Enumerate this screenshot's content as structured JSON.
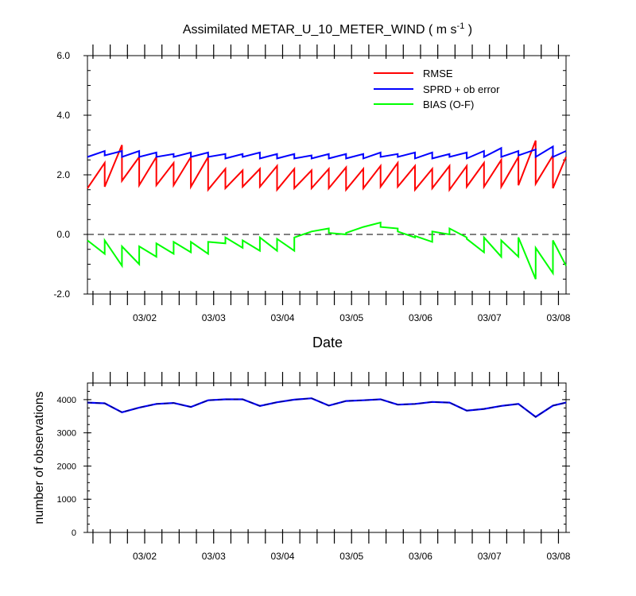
{
  "chart_data": [
    {
      "type": "line",
      "title": "Assimilated METAR_U_10_METER_WIND",
      "title_units": "( m s",
      "title_units_exp": "-1",
      "title_units_close": " )",
      "xlabel": "Date",
      "ylabel": "",
      "ylim": [
        -2.0,
        6.0
      ],
      "yticks": [
        "-2.0",
        "0.0",
        "2.0",
        "4.0",
        "6.0"
      ],
      "xlim": [
        1.17,
        8.11
      ],
      "xticks": [
        {
          "x": 2,
          "label": "03/02"
        },
        {
          "x": 3,
          "label": "03/03"
        },
        {
          "x": 4,
          "label": "03/04"
        },
        {
          "x": 5,
          "label": "03/05"
        },
        {
          "x": 6,
          "label": "03/06"
        },
        {
          "x": 7,
          "label": "03/07"
        },
        {
          "x": 8,
          "label": "03/08"
        }
      ],
      "zero_line": true,
      "legend_position": "top-right",
      "series": [
        {
          "name": "RMSE",
          "color": "#ff0000"
        },
        {
          "name": "SPRD + ob error",
          "color": "#0000ff"
        },
        {
          "name": "BIAS (O-F)",
          "color": "#00ff00"
        }
      ],
      "sawtooth": [
        {
          "x0": 1.17,
          "x1": 1.42,
          "rmse": [
            1.55,
            2.4
          ],
          "sprd": [
            2.6,
            2.8
          ],
          "bias": [
            -0.2,
            -0.65
          ]
        },
        {
          "x0": 1.42,
          "x1": 1.67,
          "rmse": [
            1.6,
            3.0
          ],
          "sprd": [
            2.65,
            2.8
          ],
          "bias": [
            -0.2,
            -1.05
          ]
        },
        {
          "x0": 1.67,
          "x1": 1.92,
          "rmse": [
            1.8,
            2.6
          ],
          "sprd": [
            2.6,
            2.8
          ],
          "bias": [
            -0.4,
            -1.0
          ]
        },
        {
          "x0": 1.92,
          "x1": 2.17,
          "rmse": [
            1.65,
            2.6
          ],
          "sprd": [
            2.6,
            2.75
          ],
          "bias": [
            -0.4,
            -0.75
          ]
        },
        {
          "x0": 2.17,
          "x1": 2.42,
          "rmse": [
            1.65,
            2.4
          ],
          "sprd": [
            2.6,
            2.7
          ],
          "bias": [
            -0.3,
            -0.65
          ]
        },
        {
          "x0": 2.42,
          "x1": 2.67,
          "rmse": [
            1.65,
            2.6
          ],
          "sprd": [
            2.6,
            2.75
          ],
          "bias": [
            -0.25,
            -0.6
          ]
        },
        {
          "x0": 2.67,
          "x1": 2.92,
          "rmse": [
            1.6,
            2.6
          ],
          "sprd": [
            2.6,
            2.75
          ],
          "bias": [
            -0.25,
            -0.65
          ]
        },
        {
          "x0": 2.92,
          "x1": 3.17,
          "rmse": [
            1.5,
            2.2
          ],
          "sprd": [
            2.6,
            2.7
          ],
          "bias": [
            -0.25,
            -0.3
          ]
        },
        {
          "x0": 3.17,
          "x1": 3.42,
          "rmse": [
            1.55,
            2.15
          ],
          "sprd": [
            2.55,
            2.7
          ],
          "bias": [
            -0.1,
            -0.45
          ]
        },
        {
          "x0": 3.42,
          "x1": 3.67,
          "rmse": [
            1.6,
            2.2
          ],
          "sprd": [
            2.6,
            2.75
          ],
          "bias": [
            -0.2,
            -0.55
          ]
        },
        {
          "x0": 3.67,
          "x1": 3.92,
          "rmse": [
            1.6,
            2.3
          ],
          "sprd": [
            2.55,
            2.7
          ],
          "bias": [
            -0.1,
            -0.55
          ]
        },
        {
          "x0": 3.92,
          "x1": 4.17,
          "rmse": [
            1.5,
            2.2
          ],
          "sprd": [
            2.55,
            2.7
          ],
          "bias": [
            -0.15,
            -0.55
          ]
        },
        {
          "x0": 4.17,
          "x1": 4.42,
          "rmse": [
            1.55,
            2.15
          ],
          "sprd": [
            2.55,
            2.65
          ],
          "bias": [
            -0.1,
            0.1
          ]
        },
        {
          "x0": 4.42,
          "x1": 4.67,
          "rmse": [
            1.55,
            2.2
          ],
          "sprd": [
            2.55,
            2.7
          ],
          "bias": [
            0.1,
            0.2
          ]
        },
        {
          "x0": 4.67,
          "x1": 4.92,
          "rmse": [
            1.55,
            2.25
          ],
          "sprd": [
            2.55,
            2.7
          ],
          "bias": [
            0.05,
            0.0
          ]
        },
        {
          "x0": 4.92,
          "x1": 5.17,
          "rmse": [
            1.5,
            2.2
          ],
          "sprd": [
            2.55,
            2.7
          ],
          "bias": [
            0.05,
            0.25
          ]
        },
        {
          "x0": 5.17,
          "x1": 5.42,
          "rmse": [
            1.55,
            2.3
          ],
          "sprd": [
            2.55,
            2.75
          ],
          "bias": [
            0.25,
            0.4
          ]
        },
        {
          "x0": 5.42,
          "x1": 5.67,
          "rmse": [
            1.6,
            2.4
          ],
          "sprd": [
            2.6,
            2.7
          ],
          "bias": [
            0.25,
            0.2
          ]
        },
        {
          "x0": 5.67,
          "x1": 5.92,
          "rmse": [
            1.6,
            2.3
          ],
          "sprd": [
            2.6,
            2.75
          ],
          "bias": [
            0.1,
            -0.1
          ]
        },
        {
          "x0": 5.92,
          "x1": 6.17,
          "rmse": [
            1.5,
            2.2
          ],
          "sprd": [
            2.55,
            2.75
          ],
          "bias": [
            -0.05,
            -0.25
          ]
        },
        {
          "x0": 6.17,
          "x1": 6.42,
          "rmse": [
            1.55,
            2.3
          ],
          "sprd": [
            2.55,
            2.7
          ],
          "bias": [
            0.1,
            0.0
          ]
        },
        {
          "x0": 6.42,
          "x1": 6.67,
          "rmse": [
            1.5,
            2.3
          ],
          "sprd": [
            2.6,
            2.75
          ],
          "bias": [
            0.2,
            -0.1
          ]
        },
        {
          "x0": 6.67,
          "x1": 6.92,
          "rmse": [
            1.6,
            2.4
          ],
          "sprd": [
            2.55,
            2.8
          ],
          "bias": [
            -0.15,
            -0.6
          ]
        },
        {
          "x0": 6.92,
          "x1": 7.17,
          "rmse": [
            1.6,
            2.5
          ],
          "sprd": [
            2.6,
            2.9
          ],
          "bias": [
            -0.1,
            -0.75
          ]
        },
        {
          "x0": 7.17,
          "x1": 7.42,
          "rmse": [
            1.6,
            2.6
          ],
          "sprd": [
            2.6,
            2.8
          ],
          "bias": [
            -0.2,
            -0.75
          ]
        },
        {
          "x0": 7.42,
          "x1": 7.67,
          "rmse": [
            1.65,
            3.15
          ],
          "sprd": [
            2.65,
            2.85
          ],
          "bias": [
            -0.1,
            -1.5
          ]
        },
        {
          "x0": 7.67,
          "x1": 7.92,
          "rmse": [
            1.7,
            2.65
          ],
          "sprd": [
            2.6,
            2.95
          ],
          "bias": [
            -0.45,
            -1.3
          ]
        },
        {
          "x0": 7.92,
          "x1": 8.11,
          "rmse": [
            1.55,
            2.6
          ],
          "sprd": [
            2.6,
            2.8
          ],
          "bias": [
            -0.2,
            -1.05
          ]
        }
      ]
    },
    {
      "type": "line",
      "ylabel": "number of observations",
      "ylim": [
        0,
        4500
      ],
      "yticks": [
        "0",
        "1000",
        "2000",
        "3000",
        "4000"
      ],
      "xlim": [
        1.17,
        8.11
      ],
      "xticks": [
        {
          "x": 2,
          "label": "03/02"
        },
        {
          "x": 3,
          "label": "03/03"
        },
        {
          "x": 4,
          "label": "03/04"
        },
        {
          "x": 5,
          "label": "03/05"
        },
        {
          "x": 6,
          "label": "03/06"
        },
        {
          "x": 7,
          "label": "03/07"
        },
        {
          "x": 8,
          "label": "03/08"
        }
      ],
      "series": [
        {
          "color": "#000080",
          "dashed": true,
          "x": [
            1.17,
            1.42,
            1.67,
            1.92,
            2.17,
            2.42,
            2.67,
            2.92,
            3.17,
            3.42,
            3.67,
            3.92,
            4.17,
            4.42,
            4.67,
            4.92,
            5.17,
            5.42,
            5.67,
            5.92,
            6.17,
            6.42,
            6.67,
            6.92,
            7.17,
            7.42,
            7.67,
            7.92,
            8.11
          ],
          "values": [
            3910,
            3890,
            3620,
            3760,
            3870,
            3900,
            3780,
            3980,
            4010,
            4010,
            3810,
            3920,
            4000,
            4040,
            3820,
            3960,
            3980,
            4010,
            3850,
            3870,
            3930,
            3910,
            3670,
            3720,
            3810,
            3870,
            3480,
            3820,
            3910
          ]
        }
      ]
    }
  ]
}
